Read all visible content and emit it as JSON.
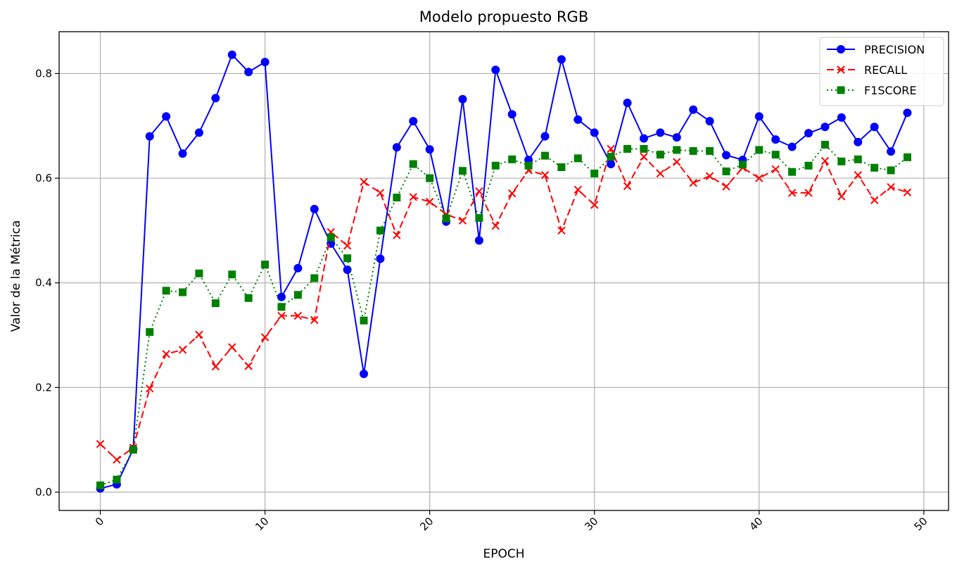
{
  "chart_data": {
    "type": "line",
    "title": "Modelo propuesto RGB",
    "xlabel": "EPOCH",
    "ylabel": "Valor de la Métrica",
    "xlim": [
      -2.5,
      51.5
    ],
    "ylim": [
      -0.035,
      0.88
    ],
    "xticks": [
      0,
      10,
      20,
      30,
      40,
      50
    ],
    "yticks": [
      0.0,
      0.2,
      0.4,
      0.6,
      0.8
    ],
    "xtick_labels": [
      "0",
      "10",
      "20",
      "30",
      "40",
      "50"
    ],
    "ytick_labels": [
      "0.0",
      "0.2",
      "0.4",
      "0.6",
      "0.8"
    ],
    "grid": true,
    "legend_position": "top-right",
    "x": [
      0,
      1,
      2,
      3,
      4,
      5,
      6,
      7,
      8,
      9,
      10,
      11,
      12,
      13,
      14,
      15,
      16,
      17,
      18,
      19,
      20,
      21,
      22,
      23,
      24,
      25,
      26,
      27,
      28,
      29,
      30,
      31,
      32,
      33,
      34,
      35,
      36,
      37,
      38,
      39,
      40,
      41,
      42,
      43,
      44,
      45,
      46,
      47,
      48,
      49
    ],
    "series": [
      {
        "name": "PRECISION",
        "color": "#0000ff",
        "line_style": "solid",
        "marker": "circle",
        "values": [
          0.007,
          0.015,
          0.082,
          0.68,
          0.718,
          0.647,
          0.687,
          0.753,
          0.836,
          0.803,
          0.822,
          0.373,
          0.428,
          0.541,
          0.475,
          0.425,
          0.226,
          0.446,
          0.659,
          0.709,
          0.655,
          0.517,
          0.751,
          0.481,
          0.807,
          0.722,
          0.635,
          0.68,
          0.827,
          0.712,
          0.687,
          0.627,
          0.744,
          0.676,
          0.687,
          0.678,
          0.731,
          0.709,
          0.644,
          0.635,
          0.718,
          0.674,
          0.66,
          0.686,
          0.698,
          0.716,
          0.669,
          0.698,
          0.651,
          0.725
        ]
      },
      {
        "name": "RECALL",
        "color": "#ff0000",
        "line_style": "dashed",
        "marker": "x",
        "values": [
          0.092,
          0.062,
          0.085,
          0.198,
          0.264,
          0.272,
          0.301,
          0.24,
          0.277,
          0.241,
          0.296,
          0.337,
          0.337,
          0.329,
          0.497,
          0.471,
          0.593,
          0.572,
          0.491,
          0.564,
          0.555,
          0.531,
          0.519,
          0.575,
          0.509,
          0.571,
          0.615,
          0.606,
          0.5,
          0.578,
          0.549,
          0.656,
          0.585,
          0.641,
          0.609,
          0.631,
          0.591,
          0.604,
          0.584,
          0.62,
          0.6,
          0.617,
          0.572,
          0.572,
          0.633,
          0.565,
          0.606,
          0.558,
          0.583,
          0.573
        ]
      },
      {
        "name": "F1SCORE",
        "color": "#008000",
        "line_style": "dotted",
        "marker": "square",
        "values": [
          0.013,
          0.024,
          0.081,
          0.306,
          0.385,
          0.382,
          0.418,
          0.361,
          0.416,
          0.371,
          0.435,
          0.354,
          0.377,
          0.409,
          0.487,
          0.447,
          0.328,
          0.5,
          0.563,
          0.627,
          0.6,
          0.523,
          0.614,
          0.524,
          0.624,
          0.636,
          0.624,
          0.643,
          0.621,
          0.638,
          0.609,
          0.641,
          0.656,
          0.656,
          0.645,
          0.654,
          0.652,
          0.652,
          0.613,
          0.626,
          0.654,
          0.645,
          0.612,
          0.624,
          0.664,
          0.632,
          0.636,
          0.62,
          0.615,
          0.64
        ]
      }
    ]
  }
}
